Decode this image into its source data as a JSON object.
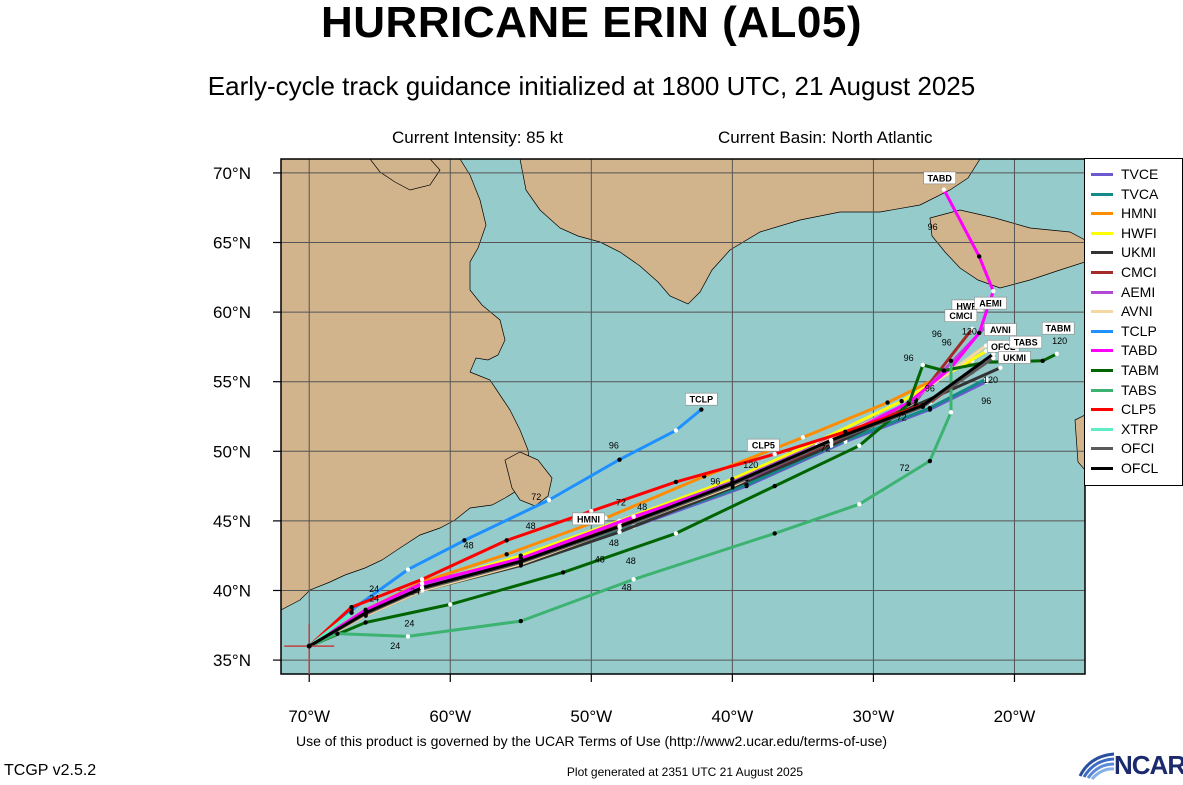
{
  "header": {
    "title": "HURRICANE ERIN (AL05)",
    "subtitle": "Early-cycle track guidance initialized at 1800 UTC, 21 August 2025",
    "intensity": "Current Intensity: 85 kt",
    "basin": "Current Basin: North Atlantic"
  },
  "map": {
    "lon_range": [
      -72,
      -15
    ],
    "lat_range": [
      34,
      71
    ],
    "lon_ticks": [
      -70,
      -60,
      -50,
      -40,
      -30,
      -20
    ],
    "lat_ticks": [
      35,
      40,
      45,
      50,
      55,
      60,
      65,
      70
    ],
    "lon_tick_labels": [
      "70°W",
      "60°W",
      "50°W",
      "40°W",
      "30°W",
      "20°W"
    ],
    "lat_tick_labels": [
      "35°N",
      "40°N",
      "45°N",
      "50°N",
      "55°N",
      "60°N",
      "65°N",
      "70°N"
    ],
    "colors": {
      "ocean": "#96cbcb",
      "land": "#d2b48c",
      "grid": "#555555"
    },
    "storm_position": {
      "lon": -70.0,
      "lat": 36.0
    }
  },
  "tracks": [
    {
      "name": "TVCE",
      "color": "#6a5acd",
      "points": [
        [
          -70,
          36
        ],
        [
          -66,
          38.3
        ],
        [
          -62,
          40
        ],
        [
          -55,
          42
        ],
        [
          -47,
          44.6
        ],
        [
          -39,
          47.5
        ],
        [
          -32,
          50.7
        ],
        [
          -26,
          53
        ],
        [
          -22,
          55
        ]
      ]
    },
    {
      "name": "TVCA",
      "color": "#138a87",
      "points": [
        [
          -70,
          36
        ],
        [
          -66,
          38.3
        ],
        [
          -62,
          40.1
        ],
        [
          -55,
          42.1
        ],
        [
          -47,
          44.7
        ],
        [
          -39,
          47.6
        ],
        [
          -32,
          50.8
        ],
        [
          -26,
          53.1
        ],
        [
          -22,
          55.2
        ]
      ]
    },
    {
      "name": "HMNI",
      "color": "#ff8c00",
      "points": [
        [
          -70,
          36
        ],
        [
          -66,
          38.6
        ],
        [
          -62,
          40.6
        ],
        [
          -56,
          42.6
        ],
        [
          -49,
          45.2
        ],
        [
          -42,
          48.2
        ],
        [
          -35,
          51
        ],
        [
          -29,
          53.5
        ],
        [
          -23,
          56.5
        ]
      ]
    },
    {
      "name": "HWFI",
      "color": "#ffff00",
      "points": [
        [
          -70,
          36
        ],
        [
          -66,
          38.5
        ],
        [
          -62,
          40.4
        ],
        [
          -55,
          42.5
        ],
        [
          -48,
          45
        ],
        [
          -40,
          48
        ],
        [
          -34,
          50.7
        ],
        [
          -28,
          53.6
        ],
        [
          -22,
          57.2
        ]
      ]
    },
    {
      "name": "UKMI",
      "color": "#333333",
      "points": [
        [
          -70,
          36
        ],
        [
          -66,
          38.2
        ],
        [
          -62,
          40
        ],
        [
          -55,
          41.8
        ],
        [
          -48,
          44.2
        ],
        [
          -40,
          47.4
        ],
        [
          -33,
          50.4
        ],
        [
          -27,
          53.3
        ],
        [
          -21,
          56
        ]
      ]
    },
    {
      "name": "CMCI",
      "color": "#a52a2a",
      "points": [
        [
          -70,
          36
        ],
        [
          -66,
          38.4
        ],
        [
          -62,
          40.2
        ],
        [
          -55,
          42.2
        ],
        [
          -48,
          44.8
        ],
        [
          -40,
          47.6
        ],
        [
          -33,
          50.6
        ],
        [
          -27,
          53.6
        ],
        [
          -23,
          58.8
        ]
      ]
    },
    {
      "name": "AEMI",
      "color": "#b04ad6",
      "points": [
        [
          -70,
          36
        ],
        [
          -66,
          38.4
        ],
        [
          -62,
          40.3
        ],
        [
          -55,
          42.3
        ],
        [
          -48,
          44.9
        ],
        [
          -40,
          47.8
        ],
        [
          -33,
          50.9
        ],
        [
          -27,
          53.7
        ],
        [
          -22,
          59
        ]
      ]
    },
    {
      "name": "AVNI",
      "color": "#f5d7a1",
      "points": [
        [
          -70,
          36
        ],
        [
          -66,
          38.2
        ],
        [
          -62,
          40
        ],
        [
          -55,
          41.9
        ],
        [
          -48,
          44.5
        ],
        [
          -40,
          47.5
        ],
        [
          -34,
          50.4
        ],
        [
          -28,
          53.2
        ],
        [
          -22,
          57.6
        ]
      ]
    },
    {
      "name": "TCLP",
      "color": "#1e90ff",
      "points": [
        [
          -70,
          36
        ],
        [
          -67,
          38.6
        ],
        [
          -63,
          41.5
        ],
        [
          -59,
          43.6
        ],
        [
          -53,
          46.5
        ],
        [
          -48,
          49.4
        ],
        [
          -44,
          51.5
        ],
        [
          -42.2,
          53
        ]
      ]
    },
    {
      "name": "TABD",
      "color": "#ff00ff",
      "points": [
        [
          -70,
          36
        ],
        [
          -66,
          38.6
        ],
        [
          -62,
          40.5
        ],
        [
          -55,
          42.3
        ],
        [
          -47,
          45.3
        ],
        [
          -39,
          48
        ],
        [
          -32,
          51.2
        ],
        [
          -27.5,
          53.5
        ],
        [
          -24.5,
          56
        ],
        [
          -22.5,
          58.5
        ],
        [
          -21.5,
          61.5
        ],
        [
          -22.5,
          64
        ],
        [
          -25,
          68.8
        ]
      ]
    },
    {
      "name": "TABM",
      "color": "#006400",
      "points": [
        [
          -70,
          36
        ],
        [
          -66,
          37.7
        ],
        [
          -60,
          39
        ],
        [
          -52,
          41.3
        ],
        [
          -44,
          44.1
        ],
        [
          -37,
          47.5
        ],
        [
          -31,
          50.4
        ],
        [
          -27.5,
          53.4
        ],
        [
          -26.5,
          56.2
        ],
        [
          -25,
          55.8
        ],
        [
          -22,
          56.4
        ],
        [
          -18,
          56.5
        ],
        [
          -17,
          57
        ]
      ]
    },
    {
      "name": "TABS",
      "color": "#3cb371",
      "points": [
        [
          -70,
          36
        ],
        [
          -68,
          36.9
        ],
        [
          -63,
          36.7
        ],
        [
          -55,
          37.8
        ],
        [
          -47,
          40.8
        ],
        [
          -37,
          44.1
        ],
        [
          -31,
          46.2
        ],
        [
          -26,
          49.3
        ],
        [
          -24.5,
          52.8
        ],
        [
          -24.5,
          56.5
        ]
      ]
    },
    {
      "name": "CLP5",
      "color": "#ff0000",
      "points": [
        [
          -70,
          36
        ],
        [
          -67,
          38.8
        ],
        [
          -62,
          40.8
        ],
        [
          -56,
          43.6
        ],
        [
          -50,
          45.7
        ],
        [
          -44,
          47.8
        ],
        [
          -37,
          49.8
        ],
        [
          -32,
          51.4
        ],
        [
          -26,
          53.5
        ],
        [
          -23,
          55.7
        ]
      ]
    },
    {
      "name": "XTRP",
      "color": "#5eedc6",
      "points": [
        [
          -70,
          36
        ],
        [
          -67,
          38.4
        ]
      ]
    },
    {
      "name": "OFCI",
      "color": "#5b5b5b",
      "points": [
        [
          -70,
          36
        ],
        [
          -66,
          38.3
        ],
        [
          -62,
          40.1
        ],
        [
          -55,
          42
        ],
        [
          -48,
          44.5
        ],
        [
          -40,
          47.6
        ],
        [
          -33,
          50.7
        ],
        [
          -26.5,
          53.2
        ],
        [
          -21.5,
          56.7
        ]
      ]
    },
    {
      "name": "OFCL",
      "color": "#000000",
      "points": [
        [
          -70,
          36
        ],
        [
          -66,
          38.4
        ],
        [
          -62,
          40.2
        ],
        [
          -55,
          42.1
        ],
        [
          -48,
          44.6
        ],
        [
          -40,
          47.7
        ],
        [
          -33,
          50.8
        ],
        [
          -26.5,
          53.3
        ],
        [
          -21.5,
          57
        ]
      ]
    }
  ],
  "track_tags": [
    {
      "label": "TABD",
      "lon": -25.3,
      "lat": 69.5
    },
    {
      "label": "TCLP",
      "lon": -42.2,
      "lat": 53.6
    },
    {
      "label": "CLP5",
      "lon": -37.8,
      "lat": 50.3
    },
    {
      "label": "HMNI",
      "lon": -50.2,
      "lat": 45.0
    },
    {
      "label": "HWFI",
      "lon": -23.3,
      "lat": 60.3
    },
    {
      "label": "AEMI",
      "lon": -21.7,
      "lat": 60.5
    },
    {
      "label": "CMCI",
      "lon": -23.8,
      "lat": 59.6
    },
    {
      "label": "AVNI",
      "lon": -21.0,
      "lat": 58.6
    },
    {
      "label": "OFCL",
      "lon": -20.8,
      "lat": 57.4
    },
    {
      "label": "TABS",
      "lon": -19.2,
      "lat": 57.7
    },
    {
      "label": "UKMI",
      "lon": -20.0,
      "lat": 56.6
    },
    {
      "label": "TABM",
      "lon": -16.9,
      "lat": 58.7
    }
  ],
  "hour_labels": [
    {
      "text": "24",
      "lon": -65.4,
      "lat": 39.9
    },
    {
      "text": "24",
      "lon": -65.4,
      "lat": 39.2
    },
    {
      "text": "24",
      "lon": -62.9,
      "lat": 37.4
    },
    {
      "text": "24",
      "lon": -63.9,
      "lat": 35.8
    },
    {
      "text": "24",
      "lon": -62.5,
      "lat": 39.7
    },
    {
      "text": "48",
      "lon": -58.7,
      "lat": 43.0
    },
    {
      "text": "48",
      "lon": -54.3,
      "lat": 44.4
    },
    {
      "text": "48",
      "lon": -49.4,
      "lat": 42.0
    },
    {
      "text": "48",
      "lon": -48.4,
      "lat": 43.2
    },
    {
      "text": "48",
      "lon": -47.2,
      "lat": 41.9
    },
    {
      "text": "48",
      "lon": -47.5,
      "lat": 40.0
    },
    {
      "text": "48",
      "lon": -46.4,
      "lat": 45.8
    },
    {
      "text": "72",
      "lon": -53.9,
      "lat": 46.5
    },
    {
      "text": "72",
      "lon": -47.9,
      "lat": 46.1
    },
    {
      "text": "72",
      "lon": -33.4,
      "lat": 50.0
    },
    {
      "text": "72",
      "lon": -28.0,
      "lat": 52.2
    },
    {
      "text": "72",
      "lon": -27.8,
      "lat": 48.6
    },
    {
      "text": "96",
      "lon": -48.4,
      "lat": 50.2
    },
    {
      "text": "96",
      "lon": -41.2,
      "lat": 47.6
    },
    {
      "text": "96",
      "lon": -27.5,
      "lat": 56.5
    },
    {
      "text": "96",
      "lon": -24.8,
      "lat": 57.6
    },
    {
      "text": "96",
      "lon": -26.0,
      "lat": 54.3
    },
    {
      "text": "96",
      "lon": -25.8,
      "lat": 65.9
    },
    {
      "text": "96",
      "lon": -22.0,
      "lat": 53.4
    },
    {
      "text": "96",
      "lon": -25.5,
      "lat": 58.2
    },
    {
      "text": "120",
      "lon": -38.7,
      "lat": 48.8
    },
    {
      "text": "120",
      "lon": -23.2,
      "lat": 58.4
    },
    {
      "text": "120",
      "lon": -21.7,
      "lat": 54.9
    },
    {
      "text": "120",
      "lon": -16.8,
      "lat": 57.7
    }
  ],
  "legend": [
    "TVCE",
    "TVCA",
    "HMNI",
    "HWFI",
    "UKMI",
    "CMCI",
    "AEMI",
    "AVNI",
    "TCLP",
    "TABD",
    "TABM",
    "TABS",
    "CLP5",
    "XTRP",
    "OFCI",
    "OFCL"
  ],
  "footer": {
    "terms": "Use of this product is governed by the UCAR Terms of Use (http://www2.ucar.edu/terms-of-use)",
    "version": "TCGP v2.5.2",
    "generated": "Plot generated at 2351 UTC   21 August 2025",
    "logo_text": "NCAR"
  }
}
